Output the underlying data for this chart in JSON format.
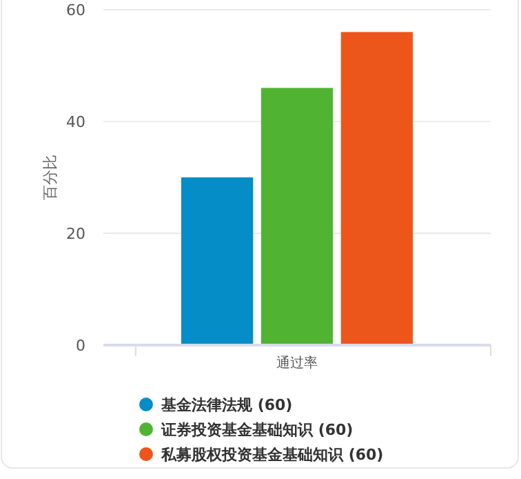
{
  "chart_data": {
    "type": "bar",
    "ylabel": "百分比",
    "categories": [
      "通过率"
    ],
    "series": [
      {
        "name": "基金法律法规 (60)",
        "color": "#058dc7",
        "values": [
          30
        ]
      },
      {
        "name": "证券投资基金基础知识 (60)",
        "color": "#50b432",
        "values": [
          46
        ]
      },
      {
        "name": "私募股权投资基金基础知识 (60)",
        "color": "#ed561b",
        "values": [
          56
        ]
      }
    ],
    "ylim": [
      0,
      60
    ],
    "yticks": [
      0,
      20,
      40,
      60
    ],
    "grid": "y",
    "legend": "bottom"
  }
}
